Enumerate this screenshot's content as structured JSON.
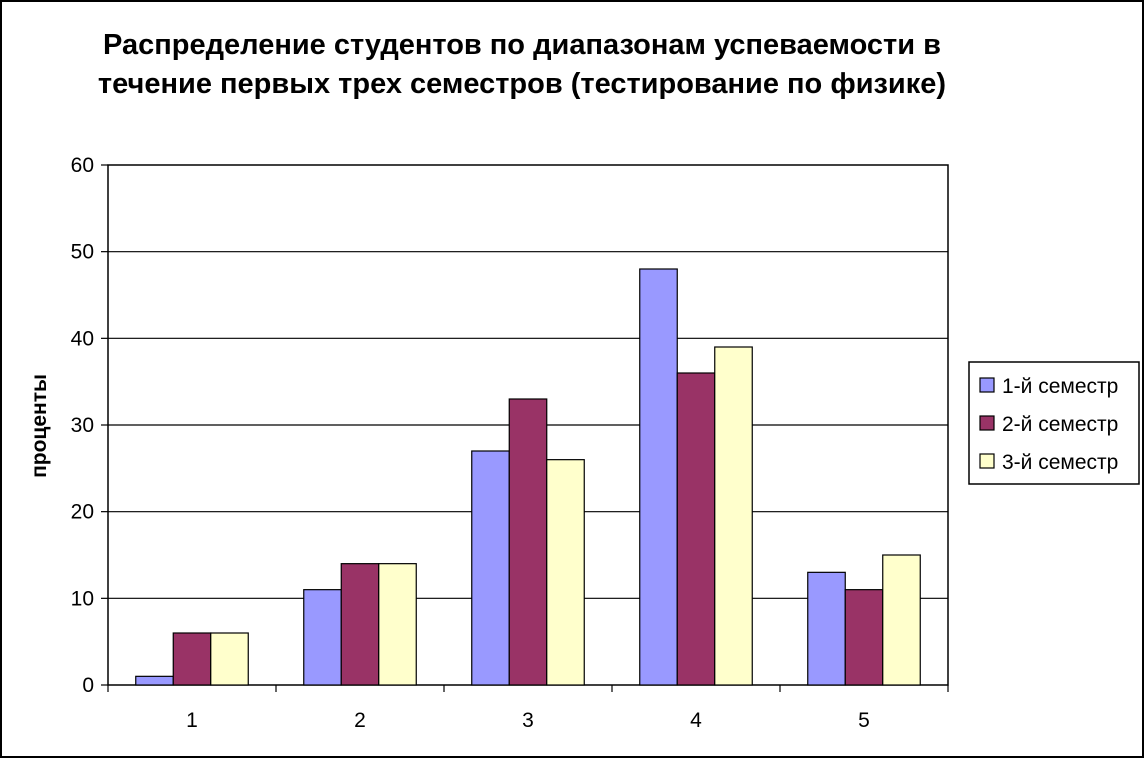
{
  "chart_data": {
    "type": "bar",
    "title": "Распределение студентов по диапазонам успеваемости в течение первых трех семестров (тестирование по физике)",
    "xlabel": "",
    "ylabel": "проценты",
    "categories": [
      "1",
      "2",
      "3",
      "4",
      "5"
    ],
    "series": [
      {
        "name": "1-й семестр",
        "color": "#9999ff",
        "values": [
          1,
          11,
          27,
          48,
          13
        ]
      },
      {
        "name": "2-й семестр",
        "color": "#993366",
        "values": [
          6,
          14,
          33,
          36,
          11
        ]
      },
      {
        "name": "3-й семестр",
        "color": "#ffffcc",
        "values": [
          6,
          14,
          26,
          39,
          15
        ]
      }
    ],
    "ylim": [
      0,
      60
    ],
    "yticks": [
      "0",
      "10",
      "20",
      "30",
      "40",
      "50",
      "60"
    ],
    "grid": true,
    "legend_position": "right"
  }
}
